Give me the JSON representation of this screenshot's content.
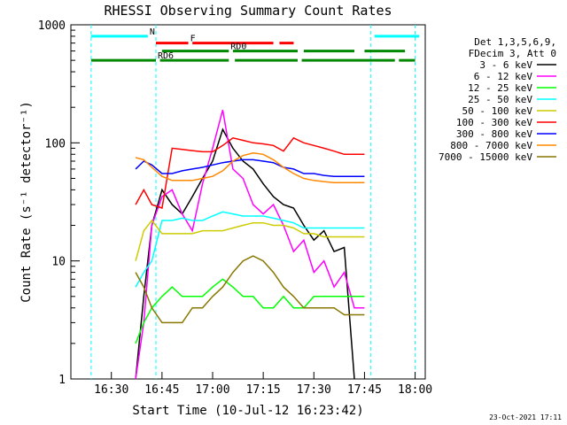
{
  "chart_data": {
    "type": "line",
    "title": "RHESSI Observing Summary Count Rates",
    "xlabel": "Start Time (10-Jul-12 16:23:42)",
    "ylabel": "Count Rate (s⁻¹ detector⁻¹)",
    "ylim": [
      1,
      1000
    ],
    "yscale": "log",
    "grid": false,
    "legend_position": "right",
    "x_ticks": [
      "16:30",
      "16:45",
      "17:00",
      "17:15",
      "17:30",
      "17:45",
      "18:00"
    ],
    "y_ticks": [
      "1",
      "10",
      "100",
      "1000"
    ],
    "legend_header": [
      "Det 1,3,5,6,9,",
      "FDecim 3, Att 0"
    ],
    "footer_date": "23-Oct-2021 17:11",
    "series": [
      {
        "name": "3 - 6 keV",
        "color": "#000000",
        "x": [
          16.62,
          16.66,
          16.7,
          16.75,
          16.8,
          16.85,
          16.9,
          16.95,
          17.0,
          17.05,
          17.1,
          17.15,
          17.2,
          17.25,
          17.3,
          17.35,
          17.4,
          17.45,
          17.5,
          17.55,
          17.6,
          17.65,
          17.7
        ],
        "y": [
          1,
          5,
          20,
          40,
          30,
          25,
          35,
          50,
          70,
          130,
          90,
          70,
          60,
          45,
          35,
          30,
          28,
          20,
          15,
          18,
          12,
          13,
          1
        ]
      },
      {
        "name": "6 - 12 keV",
        "color": "#ff00ff",
        "x": [
          16.62,
          16.66,
          16.7,
          16.75,
          16.8,
          16.85,
          16.9,
          16.95,
          17.0,
          17.05,
          17.1,
          17.15,
          17.2,
          17.25,
          17.3,
          17.35,
          17.4,
          17.45,
          17.5,
          17.55,
          17.6,
          17.65,
          17.7,
          17.75
        ],
        "y": [
          1,
          3,
          20,
          35,
          40,
          25,
          18,
          45,
          90,
          190,
          60,
          50,
          30,
          25,
          30,
          20,
          12,
          15,
          8,
          10,
          6,
          8,
          4,
          4
        ]
      },
      {
        "name": "12 - 25 keV",
        "color": "#00ff00",
        "x": [
          16.62,
          16.66,
          16.7,
          16.75,
          16.8,
          16.85,
          16.9,
          16.95,
          17.0,
          17.05,
          17.1,
          17.15,
          17.2,
          17.25,
          17.3,
          17.35,
          17.4,
          17.45,
          17.5,
          17.55,
          17.6,
          17.65,
          17.7,
          17.75
        ],
        "y": [
          2,
          3,
          4,
          5,
          6,
          5,
          5,
          5,
          6,
          7,
          6,
          5,
          5,
          4,
          4,
          5,
          4,
          4,
          5,
          5,
          5,
          5,
          5,
          5
        ]
      },
      {
        "name": "25 - 50 keV",
        "color": "#00ffff",
        "x": [
          16.62,
          16.66,
          16.7,
          16.75,
          16.8,
          16.85,
          16.9,
          16.95,
          17.0,
          17.05,
          17.1,
          17.15,
          17.2,
          17.25,
          17.3,
          17.35,
          17.4,
          17.45,
          17.5,
          17.55,
          17.6,
          17.65,
          17.7,
          17.75
        ],
        "y": [
          6,
          8,
          10,
          22,
          22,
          23,
          22,
          22,
          24,
          26,
          25,
          24,
          24,
          24,
          23,
          22,
          21,
          19,
          19,
          19,
          19,
          19,
          19,
          19
        ]
      },
      {
        "name": "50 - 100 keV",
        "color": "#cccc00",
        "x": [
          16.62,
          16.66,
          16.7,
          16.75,
          16.8,
          16.85,
          16.9,
          16.95,
          17.0,
          17.05,
          17.1,
          17.15,
          17.2,
          17.25,
          17.3,
          17.35,
          17.4,
          17.45,
          17.5,
          17.55,
          17.6,
          17.65,
          17.7,
          17.75
        ],
        "y": [
          10,
          18,
          22,
          17,
          17,
          17,
          17,
          18,
          18,
          18,
          19,
          20,
          21,
          21,
          20,
          20,
          19,
          17,
          17,
          16,
          16,
          16,
          16,
          16
        ]
      },
      {
        "name": "100 - 300 keV",
        "color": "#ff0000",
        "x": [
          16.62,
          16.66,
          16.7,
          16.75,
          16.8,
          16.85,
          16.9,
          16.95,
          17.0,
          17.05,
          17.1,
          17.15,
          17.2,
          17.25,
          17.3,
          17.35,
          17.4,
          17.45,
          17.5,
          17.55,
          17.6,
          17.65,
          17.7,
          17.75
        ],
        "y": [
          30,
          40,
          30,
          28,
          90,
          88,
          86,
          84,
          84,
          95,
          110,
          105,
          100,
          98,
          95,
          85,
          110,
          100,
          95,
          90,
          85,
          80,
          80,
          80
        ]
      },
      {
        "name": "300 - 800 keV",
        "color": "#0000ff",
        "x": [
          16.62,
          16.66,
          16.7,
          16.75,
          16.8,
          16.85,
          16.9,
          16.95,
          17.0,
          17.05,
          17.1,
          17.15,
          17.2,
          17.25,
          17.3,
          17.35,
          17.4,
          17.45,
          17.5,
          17.55,
          17.6,
          17.65,
          17.7,
          17.75
        ],
        "y": [
          60,
          70,
          65,
          55,
          55,
          58,
          60,
          62,
          65,
          68,
          70,
          72,
          72,
          70,
          68,
          62,
          60,
          55,
          55,
          53,
          52,
          52,
          52,
          52
        ]
      },
      {
        "name": "800 - 7000 keV",
        "color": "#ff8800",
        "x": [
          16.62,
          16.66,
          16.7,
          16.75,
          16.8,
          16.85,
          16.9,
          16.95,
          17.0,
          17.05,
          17.1,
          17.15,
          17.2,
          17.25,
          17.3,
          17.35,
          17.4,
          17.45,
          17.5,
          17.55,
          17.6,
          17.65,
          17.7,
          17.75
        ],
        "y": [
          75,
          72,
          62,
          52,
          48,
          48,
          48,
          50,
          52,
          58,
          70,
          78,
          82,
          80,
          72,
          62,
          55,
          50,
          48,
          47,
          46,
          46,
          46,
          46
        ]
      },
      {
        "name": "7000 - 15000 keV",
        "color": "#887700",
        "x": [
          16.62,
          16.66,
          16.7,
          16.75,
          16.8,
          16.85,
          16.9,
          16.95,
          17.0,
          17.05,
          17.1,
          17.15,
          17.2,
          17.25,
          17.3,
          17.35,
          17.4,
          17.45,
          17.5,
          17.55,
          17.6,
          17.65,
          17.7,
          17.75
        ],
        "y": [
          8,
          6,
          4,
          3,
          3,
          3,
          4,
          4,
          5,
          6,
          8,
          10,
          11,
          10,
          8,
          6,
          5,
          4,
          4,
          4,
          4,
          3.5,
          3.5,
          3.5
        ]
      }
    ],
    "flag_bars": [
      {
        "label": "N",
        "color": "#00ffff",
        "y": 800,
        "segments": [
          [
            16.4,
            16.68
          ],
          [
            17.8,
            18.02
          ]
        ]
      },
      {
        "label": "F",
        "color": "#ff0000",
        "y": 700,
        "segments": [
          [
            16.72,
            16.88
          ],
          [
            16.9,
            17.3
          ],
          [
            17.33,
            17.4
          ]
        ]
      },
      {
        "label": "RD0",
        "color": "#008800",
        "y": 600,
        "segments": [
          [
            16.75,
            17.08
          ],
          [
            17.1,
            17.42
          ],
          [
            17.45,
            17.7
          ],
          [
            17.75,
            17.95
          ]
        ]
      },
      {
        "label": "RD6",
        "color": "#008800",
        "y": 500,
        "segments": [
          [
            16.4,
            16.72
          ],
          [
            16.74,
            17.08
          ],
          [
            17.11,
            17.42
          ],
          [
            17.44,
            17.9
          ],
          [
            17.92,
            18.0
          ]
        ]
      }
    ],
    "vlines_cyan": [
      16.4,
      16.72,
      17.78,
      18.0
    ]
  }
}
